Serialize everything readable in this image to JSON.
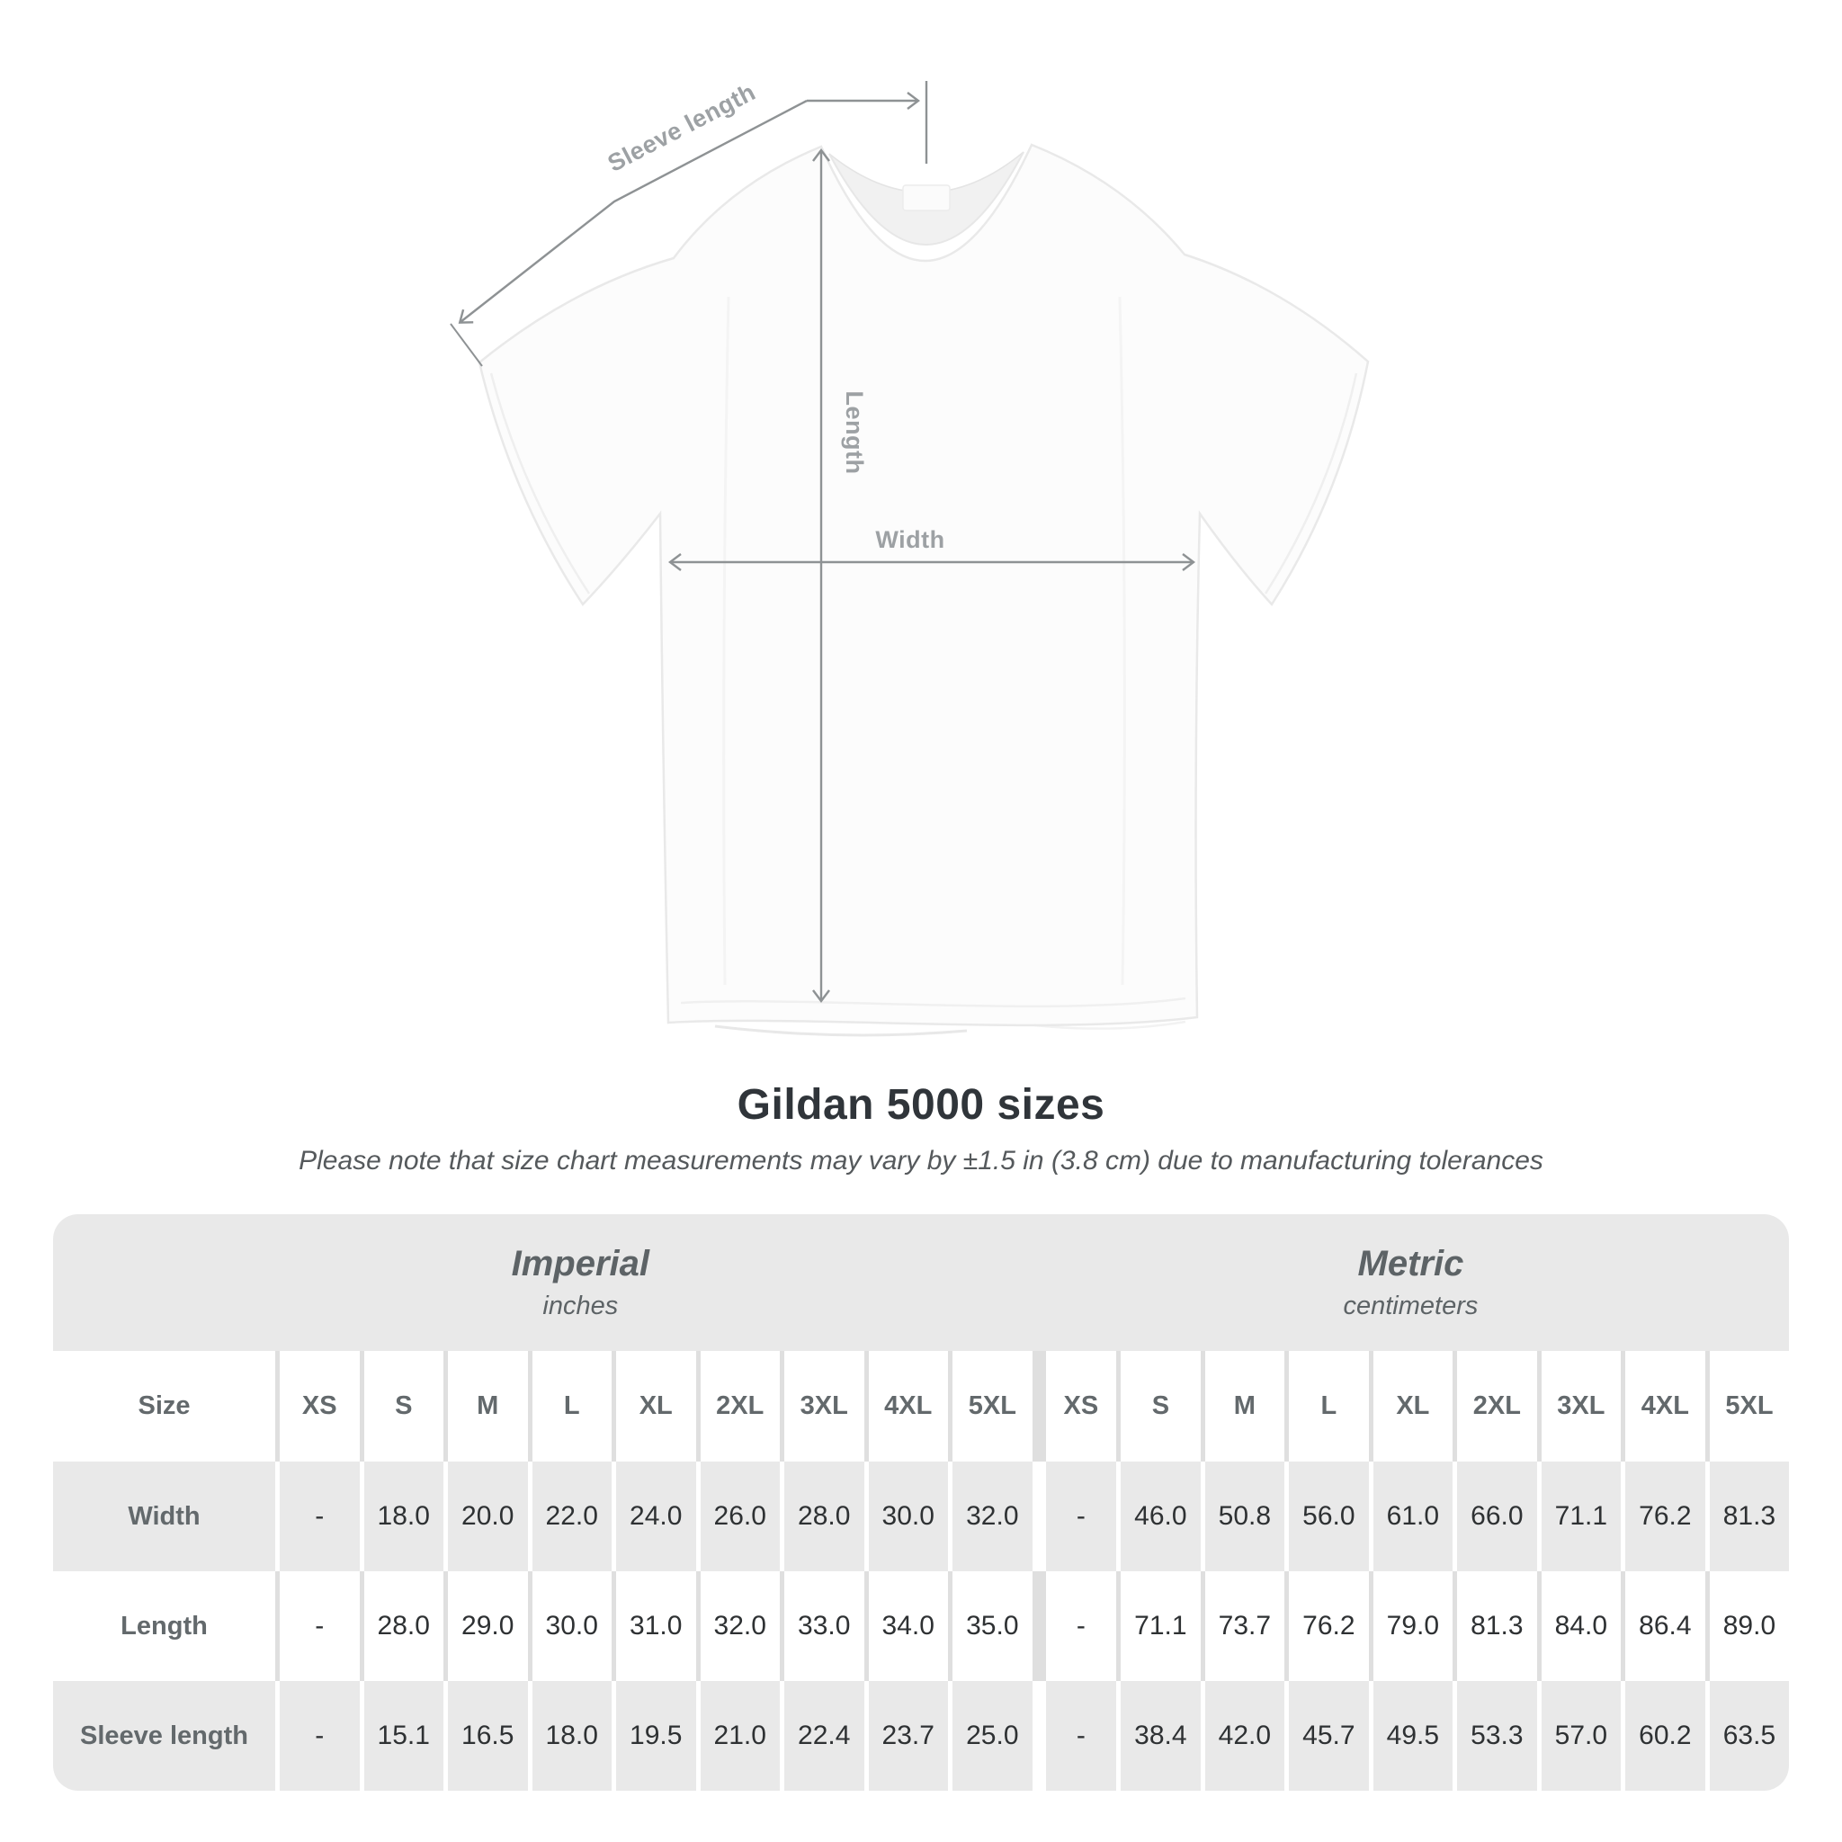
{
  "diagram": {
    "sleeve_label": "Sleeve length",
    "length_label": "Length",
    "width_label": "Width"
  },
  "title": "Gildan 5000 sizes",
  "subtitle": "Please note that size chart measurements may vary by ±1.5 in (3.8 cm) due to manufacturing tolerances",
  "colors": {
    "arrow": "#8e9294",
    "diagram_label": "#9da1a4",
    "stripe_gray": "#e9e9e9",
    "header_text": "#63696c",
    "value_text": "#2e3133"
  },
  "table": {
    "size_header": "Size",
    "sections": [
      {
        "name": "Imperial",
        "unit": "inches"
      },
      {
        "name": "Metric",
        "unit": "centimeters"
      }
    ],
    "sizes": [
      "XS",
      "S",
      "M",
      "L",
      "XL",
      "2XL",
      "3XL",
      "4XL",
      "5XL"
    ],
    "rows": [
      {
        "label": "Width",
        "imperial": [
          "-",
          "18.0",
          "20.0",
          "22.0",
          "24.0",
          "26.0",
          "28.0",
          "30.0",
          "32.0"
        ],
        "metric": [
          "-",
          "46.0",
          "50.8",
          "56.0",
          "61.0",
          "66.0",
          "71.1",
          "76.2",
          "81.3"
        ]
      },
      {
        "label": "Length",
        "imperial": [
          "-",
          "28.0",
          "29.0",
          "30.0",
          "31.0",
          "32.0",
          "33.0",
          "34.0",
          "35.0"
        ],
        "metric": [
          "-",
          "71.1",
          "73.7",
          "76.2",
          "79.0",
          "81.3",
          "84.0",
          "86.4",
          "89.0"
        ]
      },
      {
        "label": "Sleeve length",
        "imperial": [
          "-",
          "15.1",
          "16.5",
          "18.0",
          "19.5",
          "21.0",
          "22.4",
          "23.7",
          "25.0"
        ],
        "metric": [
          "-",
          "38.4",
          "42.0",
          "45.7",
          "49.5",
          "53.3",
          "57.0",
          "60.2",
          "63.5"
        ]
      }
    ]
  }
}
